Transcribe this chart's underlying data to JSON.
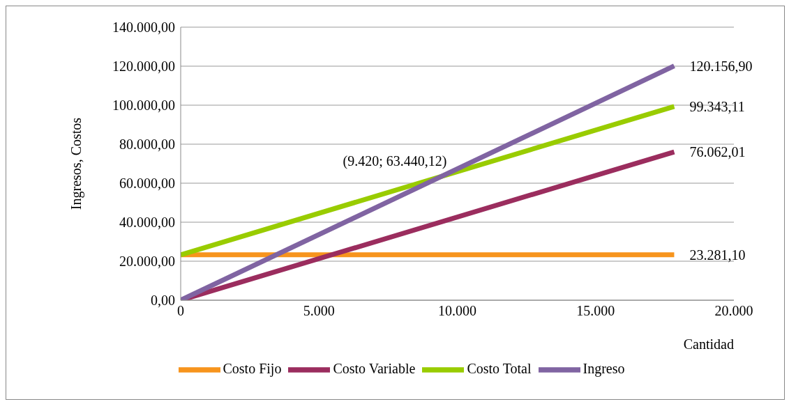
{
  "chart_data": {
    "type": "line",
    "xlabel": "Cantidad",
    "ylabel": "Ingresos, Costos",
    "x": [
      0,
      17842
    ],
    "xlim": [
      0,
      20000
    ],
    "xticks": [
      0,
      {
        "value": 5000,
        "label": "5.000"
      },
      {
        "value": 10000,
        "label": "10.000"
      },
      {
        "value": 15000,
        "label": "15.000"
      },
      {
        "value": 20000,
        "label": "20.000"
      }
    ],
    "ylim": [
      0,
      140000
    ],
    "yticks": [
      {
        "value": 0,
        "label": "0,00"
      },
      {
        "value": 20000,
        "label": "20.000,00"
      },
      {
        "value": 40000,
        "label": "40.000,00"
      },
      {
        "value": 60000,
        "label": "60.000,00"
      },
      {
        "value": 80000,
        "label": "80.000,00"
      },
      {
        "value": 100000,
        "label": "100.000,00"
      },
      {
        "value": 120000,
        "label": "120.000,00"
      },
      {
        "value": 140000,
        "label": "140.000,00"
      }
    ],
    "grid": "y",
    "legend": "bottom",
    "series": [
      {
        "name": "Costo Fijo",
        "color": "#f7941d",
        "values": [
          23281.1,
          23281.1
        ],
        "value_labels": [
          null,
          "23.281,10"
        ]
      },
      {
        "name": "Costo Variable",
        "color": "#9b2d5e",
        "values": [
          0,
          76062.01
        ],
        "value_labels": [
          null,
          "76.062,01"
        ]
      },
      {
        "name": "Costo Total",
        "color": "#99cc00",
        "values": [
          23281.1,
          99343.11
        ],
        "value_labels": [
          null,
          "99.343,11"
        ]
      },
      {
        "name": "Ingreso",
        "color": "#8064a2",
        "values": [
          0,
          120156.9
        ],
        "value_labels": [
          null,
          "120.156,90"
        ]
      }
    ],
    "annotations": [
      {
        "text": "(9.420; 63.440,12)",
        "x": 9420,
        "y": 63440.12
      }
    ]
  }
}
